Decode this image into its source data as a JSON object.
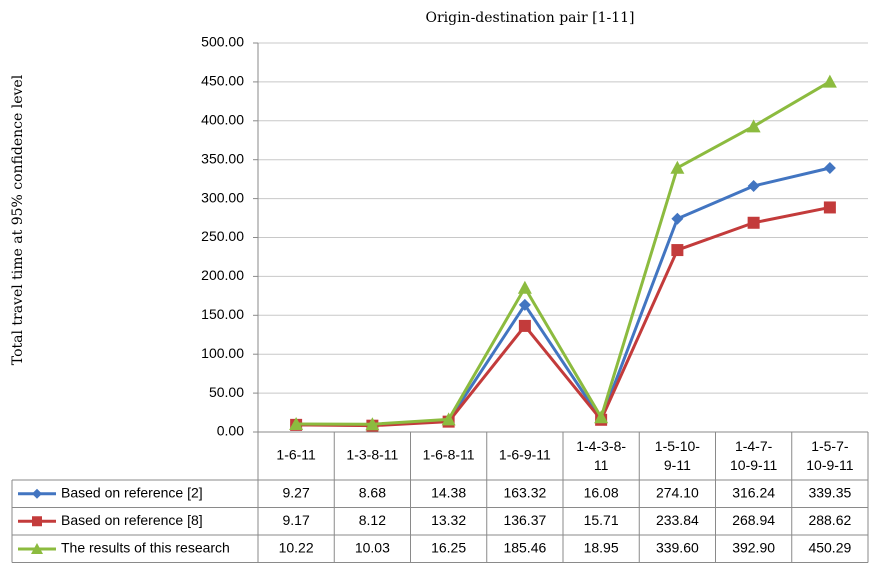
{
  "chart_data": {
    "type": "line",
    "title": "Origin-destination pair [1-11]",
    "y_label": "Total travel time at 95% confidence level",
    "categories": [
      "1-6-11",
      "1-3-8-11",
      "1-6-8-11",
      "1-6-9-11",
      "1-4-3-8-11",
      "1-5-10-9-11",
      "1-4-7-10-9-11",
      "1-5-7-10-9-11"
    ],
    "series": [
      {
        "name": "Based on reference [2]",
        "color": "#4275c1",
        "marker": "diamond",
        "values": [
          9.27,
          8.68,
          14.38,
          163.32,
          16.08,
          274.1,
          316.24,
          339.35
        ],
        "value_labels": [
          "9.27",
          "8.68",
          "14.38",
          "163.32",
          "16.08",
          "274.10",
          "316.24",
          "339.35"
        ]
      },
      {
        "name": "Based on reference [8]",
        "color": "#c33b3b",
        "marker": "square",
        "values": [
          9.17,
          8.12,
          13.32,
          136.37,
          15.71,
          233.84,
          268.94,
          288.62
        ],
        "value_labels": [
          "9.17",
          "8.12",
          "13.32",
          "136.37",
          "15.71",
          "233.84",
          "268.94",
          "288.62"
        ]
      },
      {
        "name": "The results of this research",
        "color": "#8cbb3f",
        "marker": "triangle",
        "values": [
          10.22,
          10.03,
          16.25,
          185.46,
          18.95,
          339.6,
          392.9,
          450.29
        ],
        "value_labels": [
          "10.22",
          "10.03",
          "16.25",
          "185.46",
          "18.95",
          "339.60",
          "392.90",
          "450.29"
        ]
      }
    ],
    "ylim": [
      0,
      500
    ],
    "yticks": [
      {
        "value": 0,
        "label": "0.00"
      },
      {
        "value": 50,
        "label": "50.00"
      },
      {
        "value": 100,
        "label": "100.00"
      },
      {
        "value": 150,
        "label": "150.00"
      },
      {
        "value": 200,
        "label": "200.00"
      },
      {
        "value": 250,
        "label": "250.00"
      },
      {
        "value": 300,
        "label": "300.00"
      },
      {
        "value": 350,
        "label": "350.00"
      },
      {
        "value": 400,
        "label": "400.00"
      },
      {
        "value": 450,
        "label": "450.00"
      },
      {
        "value": 500,
        "label": "500.00"
      }
    ],
    "grid": true
  }
}
